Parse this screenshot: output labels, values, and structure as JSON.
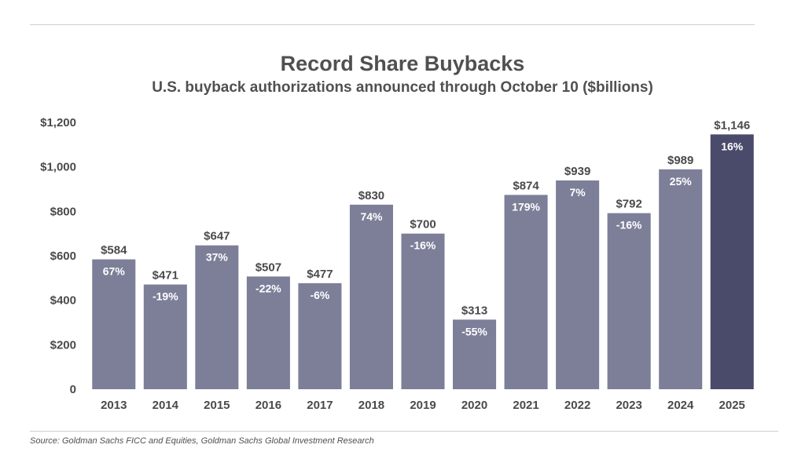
{
  "chart_data": {
    "type": "bar",
    "title": "Record Share Buybacks",
    "subtitle": "U.S. buyback authorizations announced through October 10 ($billions)",
    "xlabel": "",
    "ylabel": "",
    "categories": [
      "2013",
      "2014",
      "2015",
      "2016",
      "2017",
      "2018",
      "2019",
      "2020",
      "2021",
      "2022",
      "2023",
      "2024",
      "2025"
    ],
    "values": [
      584,
      471,
      647,
      507,
      477,
      830,
      700,
      313,
      874,
      939,
      792,
      989,
      1146
    ],
    "value_labels": [
      "$584",
      "$471",
      "$647",
      "$507",
      "$477",
      "$830",
      "$700",
      "$313",
      "$874",
      "$939",
      "$792",
      "$989",
      "$1,146"
    ],
    "pct_labels": [
      "67%",
      "-19%",
      "37%",
      "-22%",
      "-6%",
      "74%",
      "-16%",
      "-55%",
      "179%",
      "7%",
      "-16%",
      "25%",
      "16%"
    ],
    "ylim": [
      0,
      1200
    ],
    "yticks": [
      0,
      200,
      400,
      600,
      800,
      1000,
      1200
    ],
    "ytick_labels": [
      "0",
      "$200",
      "$400",
      "$600",
      "$800",
      "$1,000",
      "$1,200"
    ],
    "grid": false,
    "legend": "none",
    "colors": {
      "bar": "#7d7f99",
      "highlight": "#4a4a6b"
    },
    "highlight_index": 12
  },
  "source": "Source: Goldman Sachs FICC and Equities, Goldman Sachs Global Investment Research"
}
